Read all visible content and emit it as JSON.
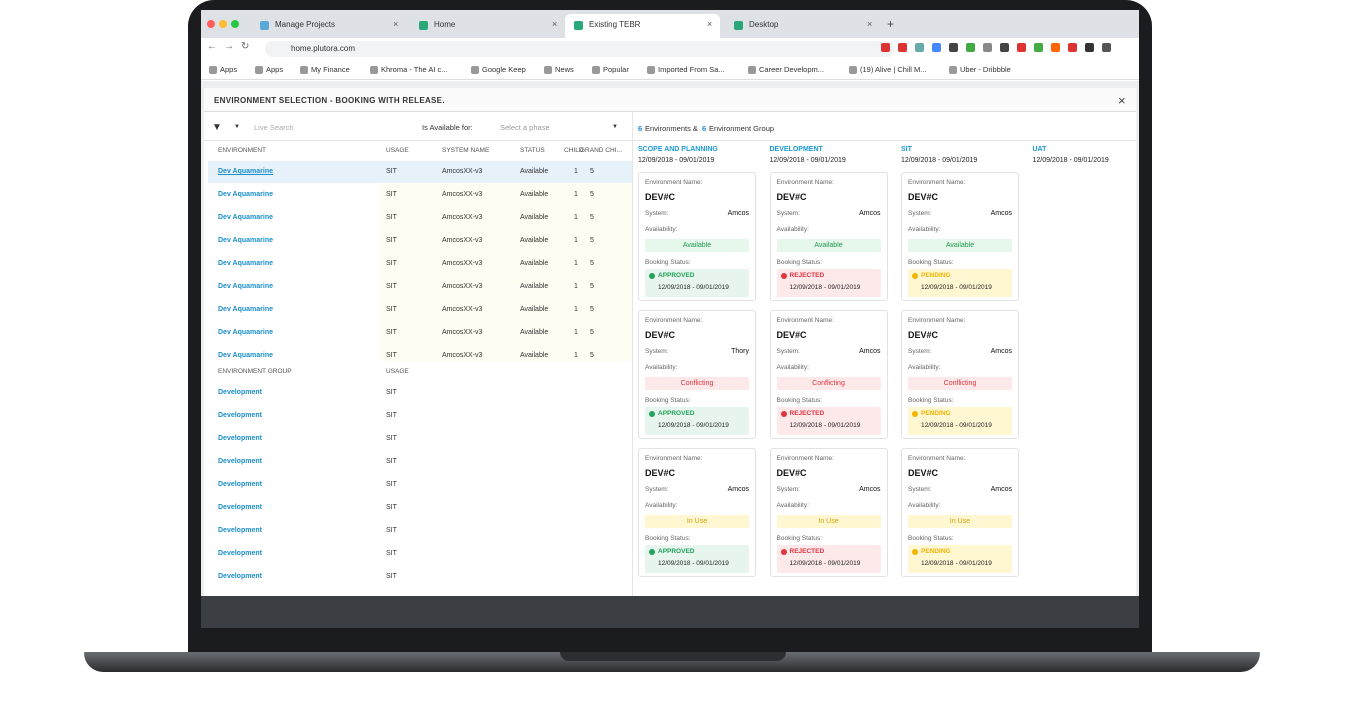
{
  "browser": {
    "tabs": [
      "Manage Projects",
      "Home",
      "Existing TEBR",
      "Desktop"
    ],
    "url": "home.plutora.com",
    "bookmarks": [
      "Apps",
      "Apps",
      "My Finance",
      "Khroma - The AI c...",
      "Google Keep",
      "News",
      "Popular",
      "Imported From Sa...",
      "Career Developm...",
      "(19) Alive | Chill M...",
      "Uber - Dribbble"
    ]
  },
  "dialog": {
    "title": "ENVIRONMENT SELECTION - BOOKING WITH RELEASE.",
    "filter": {
      "search_placeholder": "Live Search",
      "available_label": "Is Available for:",
      "phase_placeholder": "Select a phase"
    },
    "env_table": {
      "headers": [
        "ENVIRONMENT",
        "USAGE",
        "SYSTEM NAME",
        "STATUS",
        "CHILD",
        "GRAND CHI..."
      ],
      "rows": [
        [
          "Dev Aquamarine",
          "SIT",
          "AmcosXX-v3",
          "Available",
          1,
          5
        ],
        [
          "Dev Aquamarine",
          "SIT",
          "AmcosXX-v3",
          "Available",
          1,
          5
        ],
        [
          "Dev Aquamarine",
          "SIT",
          "AmcosXX-v3",
          "Available",
          1,
          5
        ],
        [
          "Dev Aquamarine",
          "SIT",
          "AmcosXX-v3",
          "Available",
          1,
          5
        ],
        [
          "Dev Aquamarine",
          "SIT",
          "AmcosXX-v3",
          "Available",
          1,
          5
        ],
        [
          "Dev Aquamarine",
          "SIT",
          "AmcosXX-v3",
          "Available",
          1,
          5
        ],
        [
          "Dev Aquamarine",
          "SIT",
          "AmcosXX-v3",
          "Available",
          1,
          5
        ],
        [
          "Dev Aquamarine",
          "SIT",
          "AmcosXX-v3",
          "Available",
          1,
          5
        ],
        [
          "Dev Aquamarine",
          "SIT",
          "AmcosXX-v3",
          "Available",
          1,
          5
        ]
      ]
    },
    "group_table": {
      "headers": [
        "ENVIRONMENT GROUP",
        "USAGE"
      ],
      "rows": [
        [
          "Development",
          "SIT"
        ],
        [
          "Development",
          "SIT"
        ],
        [
          "Development",
          "SIT"
        ],
        [
          "Development",
          "SIT"
        ],
        [
          "Development",
          "SIT"
        ],
        [
          "Development",
          "SIT"
        ],
        [
          "Development",
          "SIT"
        ],
        [
          "Development",
          "SIT"
        ],
        [
          "Development",
          "SIT"
        ]
      ]
    },
    "summary": {
      "env_count": 6,
      "env_label": "Environments &",
      "group_count": 6,
      "group_label": "Environment Group"
    },
    "card_labels": {
      "name": "Environment Name:",
      "system": "System:",
      "availability": "Availability:",
      "booking": "Booking Status:"
    },
    "columns": [
      {
        "title": "SCOPE AND PLANNING",
        "dates": "12/09/2018 - 09/01/2019",
        "cards": [
          {
            "name": "DEV#C",
            "system": "Amcos",
            "availability": "Available",
            "booking": "APPROVED",
            "booking_dates": "12/09/2018 - 09/01/2019"
          },
          {
            "name": "DEV#C",
            "system": "Thory",
            "availability": "Conflicting",
            "booking": "APPROVED",
            "booking_dates": "12/09/2018 - 09/01/2019"
          },
          {
            "name": "DEV#C",
            "system": "Amcos",
            "availability": "In Use",
            "booking": "APPROVED",
            "booking_dates": "12/09/2018 - 09/01/2019"
          }
        ]
      },
      {
        "title": "DEVELOPMENT",
        "dates": "12/09/2018 - 09/01/2019",
        "cards": [
          {
            "name": "DEV#C",
            "system": "Amcos",
            "availability": "Available",
            "booking": "REJECTED",
            "booking_dates": "12/09/2018 - 09/01/2019"
          },
          {
            "name": "DEV#C",
            "system": "Amcos",
            "availability": "Conflicting",
            "booking": "REJECTED",
            "booking_dates": "12/09/2018 - 09/01/2019"
          },
          {
            "name": "DEV#C",
            "system": "Amcos",
            "availability": "In Use",
            "booking": "REJECTED",
            "booking_dates": "12/09/2018 - 09/01/2019"
          }
        ]
      },
      {
        "title": "SIT",
        "dates": "12/09/2018 - 09/01/2019",
        "cards": [
          {
            "name": "DEV#C",
            "system": "Amcos",
            "availability": "Available",
            "booking": "PENDING",
            "booking_dates": "12/09/2018 - 09/01/2019"
          },
          {
            "name": "DEV#C",
            "system": "Amcos",
            "availability": "Conflicting",
            "booking": "PENDING",
            "booking_dates": "12/09/2018 - 09/01/2019"
          },
          {
            "name": "DEV#C",
            "system": "Amcos",
            "availability": "In Use",
            "booking": "PENDING",
            "booking_dates": "12/09/2018 - 09/01/2019"
          }
        ]
      },
      {
        "title": "UAT",
        "dates": "12/09/2018 - 09/01/2019",
        "cards": []
      }
    ]
  }
}
